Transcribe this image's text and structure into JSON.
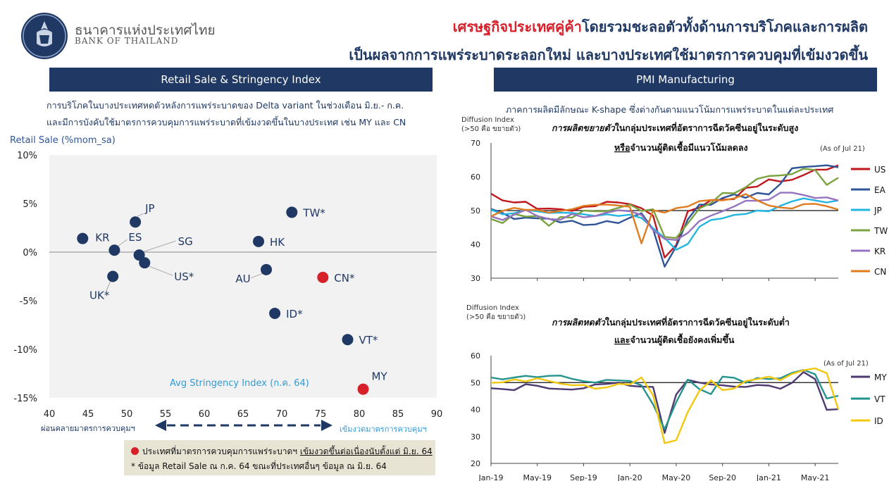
{
  "header": {
    "logo_thai": "ธนาคารแห่งประเทศไทย",
    "logo_en": "BANK OF THAILAND",
    "headline_highlight": "เศรษฐกิจประเทศคู่ค้า",
    "headline_rest": "โดยรวมชะลอตัวทั้งด้านการบริโภคและการผลิต",
    "headline_line2": "เป็นผลจากการแพร่ระบาดระลอกใหม่ และบางประเทศใช้มาตรการควบคุมที่เข้มงวดขึ้น"
  },
  "left_panel": {
    "banner": "Retail Sale & Stringency Index",
    "note_line1": "การบริโภคในบางประเทศหดตัวหลังการแพร่ระบาดของ Delta variant ในช่วงเดือน มิ.ย.- ก.ค.",
    "note_line2": "และมีการบังคับใช้มาตรการควบคุมการแพร่ระบาดที่เข้มงวดขึ้นในบางประเทศ เช่น MY และ CN",
    "arrow_left_label": "ผ่อนคลายมาตรการควบคุมฯ",
    "arrow_right_label": "เข้มงวดมาตรการควบคุมฯ",
    "legend_red": "ประเทศที่มาตรการควบคุมการแพร่ระบาดฯ",
    "legend_red_underlined": "เข้มงวดขึ้นต่อเนื่องนับตั้งแต่ มิ.ย. 64",
    "legend_star": "*  ข้อมูล Retail Sale ณ ก.ค. 64 ขณะที่ประเทศอื่นๆ ข้อมูล ณ มิ.ย. 64"
  },
  "right_panel": {
    "banner": "PMI Manufacturing",
    "note": "ภาคการผลิตมีลักษณะ K-shape ซึ่งต่างกันตามแนวโน้มการแพร่ระบาดในแต่ละประเทศ"
  },
  "colors": {
    "navy": "#1f3864",
    "red_dot": "#d6212a",
    "US": "#c0161c",
    "EA": "#2f5597",
    "JP": "#24b4e0",
    "TW": "#7aa340",
    "KR": "#9673c0",
    "CN": "#e07b20",
    "MY": "#4e3a73",
    "VT": "#26948e",
    "ID": "#f2c80f"
  },
  "chart_data": [
    {
      "type": "scatter",
      "title": "",
      "xlabel": "Avg Stringency Index (ก.ค. 64)",
      "ylabel": "Retail Sale (%mom_sa)",
      "xlim": [
        40,
        90
      ],
      "ylim": [
        -15,
        10
      ],
      "x_ticks": [
        "40",
        "45",
        "50",
        "55",
        "60",
        "65",
        "70",
        "75",
        "80",
        "85",
        "90"
      ],
      "y_ticks": [
        "10%",
        "5%",
        "0%",
        "-5%",
        "-10%",
        "-15%"
      ],
      "points": [
        {
          "label": "KR",
          "x": 44.3,
          "y": 1.4,
          "highlight": false
        },
        {
          "label": "JP",
          "x": 51.1,
          "y": 3.1,
          "highlight": false
        },
        {
          "label": "ES",
          "x": 48.4,
          "y": 0.2,
          "highlight": false
        },
        {
          "label": "SG",
          "x": 51.6,
          "y": -0.3,
          "highlight": false
        },
        {
          "label": "US*",
          "x": 52.3,
          "y": -1.1,
          "highlight": false
        },
        {
          "label": "UK*",
          "x": 48.2,
          "y": -2.5,
          "highlight": false
        },
        {
          "label": "TW*",
          "x": 71.3,
          "y": 4.1,
          "highlight": false
        },
        {
          "label": "HK",
          "x": 67.0,
          "y": 1.1,
          "highlight": false
        },
        {
          "label": "AU",
          "x": 68.0,
          "y": -1.8,
          "highlight": false
        },
        {
          "label": "CN*",
          "x": 75.3,
          "y": -2.6,
          "highlight": true
        },
        {
          "label": "ID*",
          "x": 69.1,
          "y": -6.3,
          "highlight": false
        },
        {
          "label": "VT*",
          "x": 78.5,
          "y": -9.0,
          "highlight": false
        },
        {
          "label": "MY",
          "x": 80.5,
          "y": -14.1,
          "highlight": true
        }
      ]
    },
    {
      "type": "line",
      "title": "การผลิตขยายตัวในกลุ่มประเทศที่อัตราการฉีดวัคซีนอยู่ในระดับสูง",
      "title_emph": "การผลิตขยายตัว",
      "title_rest": "ในกลุ่มประเทศที่อัตราการฉีดวัคซีนอยู่ในระดับสูง",
      "subtitle_underlined": "หรือ",
      "subtitle_rest": "จำนวนผู้ติดเชื้อมีแนวโน้มลดลง",
      "ylabel_line1": "Diffusion Index",
      "ylabel_line2": "(>50 คือ ขยายตัว)",
      "as_of": "(As of Jul 21)",
      "ylim": [
        30,
        70
      ],
      "y_ticks": [
        "70",
        "60",
        "50",
        "40",
        "30"
      ],
      "x_ticks": [
        "Jan-19",
        "May-19",
        "Sep-19",
        "Jan-20",
        "May-20",
        "Sep-20",
        "Jan-21",
        "May-21"
      ],
      "x": [
        "Jan-19",
        "Feb-19",
        "Mar-19",
        "Apr-19",
        "May-19",
        "Jun-19",
        "Jul-19",
        "Aug-19",
        "Sep-19",
        "Oct-19",
        "Nov-19",
        "Dec-19",
        "Jan-20",
        "Feb-20",
        "Mar-20",
        "Apr-20",
        "May-20",
        "Jun-20",
        "Jul-20",
        "Aug-20",
        "Sep-20",
        "Oct-20",
        "Nov-20",
        "Dec-20",
        "Jan-21",
        "Feb-21",
        "Mar-21",
        "Apr-21",
        "May-21",
        "Jun-21",
        "Jul-21"
      ],
      "reference_line": 50,
      "series": [
        {
          "name": "US",
          "values": [
            55.0,
            53.0,
            52.4,
            52.6,
            50.5,
            50.6,
            50.4,
            49.9,
            51.1,
            51.3,
            52.6,
            52.4,
            51.9,
            50.7,
            48.5,
            36.1,
            39.8,
            49.8,
            50.9,
            53.1,
            53.2,
            53.4,
            56.7,
            57.1,
            59.2,
            58.6,
            59.1,
            60.5,
            62.1,
            62.1,
            63.4
          ]
        },
        {
          "name": "EA",
          "values": [
            50.5,
            49.3,
            47.5,
            47.9,
            47.7,
            47.6,
            46.5,
            47.0,
            45.7,
            45.9,
            46.9,
            46.3,
            47.9,
            49.2,
            44.5,
            33.4,
            39.4,
            47.4,
            51.8,
            51.7,
            53.7,
            54.8,
            53.8,
            55.2,
            54.8,
            57.9,
            62.5,
            62.9,
            63.1,
            63.4,
            62.8
          ]
        },
        {
          "name": "JP",
          "values": [
            50.3,
            48.9,
            49.2,
            50.2,
            49.8,
            49.3,
            49.4,
            49.3,
            48.9,
            48.4,
            48.9,
            48.4,
            48.8,
            47.8,
            44.8,
            41.9,
            38.4,
            40.1,
            45.2,
            47.2,
            47.7,
            48.7,
            49.0,
            50.0,
            49.8,
            51.4,
            52.7,
            53.6,
            53.0,
            52.4,
            53.0
          ]
        },
        {
          "name": "TW",
          "values": [
            47.5,
            46.3,
            49.0,
            48.2,
            48.4,
            45.5,
            48.1,
            47.9,
            50.0,
            49.8,
            49.8,
            50.8,
            51.8,
            49.9,
            50.4,
            42.2,
            41.9,
            46.2,
            50.6,
            52.2,
            55.2,
            55.1,
            56.9,
            59.4,
            60.2,
            60.4,
            60.8,
            62.4,
            62.0,
            57.6,
            59.7
          ]
        },
        {
          "name": "KR",
          "values": [
            48.3,
            47.2,
            48.8,
            50.2,
            48.4,
            47.5,
            47.3,
            49.0,
            48.0,
            48.4,
            49.4,
            50.1,
            49.8,
            48.7,
            44.2,
            41.6,
            41.3,
            43.4,
            46.9,
            48.5,
            49.8,
            51.2,
            52.9,
            52.9,
            53.2,
            55.3,
            55.3,
            54.6,
            53.7,
            53.9,
            53.0
          ]
        },
        {
          "name": "CN",
          "values": [
            48.3,
            49.9,
            50.8,
            50.2,
            50.2,
            49.4,
            49.9,
            50.4,
            51.4,
            51.7,
            51.8,
            51.5,
            51.1,
            40.3,
            50.1,
            49.4,
            50.7,
            51.2,
            52.8,
            53.1,
            53.0,
            53.6,
            54.9,
            53.0,
            51.5,
            50.9,
            50.6,
            51.9,
            52.0,
            51.3,
            50.3
          ]
        }
      ]
    },
    {
      "type": "line",
      "title": "การผลิตหดตัวในกลุ่มประเทศที่อัตราการฉีดวัคซีนอยู่ในระดับต่ำ",
      "title_emph": "การผลิตหดตัว",
      "title_rest": "ในกลุ่มประเทศที่อัตราการฉีดวัคซีนอยู่ในระดับต่ำ",
      "subtitle_underlined": "และ",
      "subtitle_rest": "จำนวนผู้ติดเชื้อยังคงเพิ่มขึ้น",
      "ylabel_line1": "Diffusion Index",
      "ylabel_line2": "(>50 คือ ขยายตัว)",
      "as_of": "(As of Jul 21)",
      "ylim": [
        20,
        60
      ],
      "y_ticks": [
        "60",
        "50",
        "40",
        "30",
        "20"
      ],
      "x_ticks": [
        "Jan-19",
        "May-19",
        "Sep-19",
        "Jan-20",
        "May-20",
        "Sep-20",
        "Jan-21",
        "May-21"
      ],
      "x": [
        "Jan-19",
        "Feb-19",
        "Mar-19",
        "Apr-19",
        "May-19",
        "Jun-19",
        "Jul-19",
        "Aug-19",
        "Sep-19",
        "Oct-19",
        "Nov-19",
        "Dec-19",
        "Jan-20",
        "Feb-20",
        "Mar-20",
        "Apr-20",
        "May-20",
        "Jun-20",
        "Jul-20",
        "Aug-20",
        "Sep-20",
        "Oct-20",
        "Nov-20",
        "Dec-20",
        "Jan-21",
        "Feb-21",
        "Mar-21",
        "Apr-21",
        "May-21",
        "Jun-21",
        "Jul-21"
      ],
      "reference_line": 50,
      "series": [
        {
          "name": "MY",
          "values": [
            47.9,
            47.6,
            47.2,
            49.4,
            48.8,
            47.8,
            47.6,
            47.4,
            47.9,
            49.3,
            49.5,
            50.0,
            48.8,
            48.5,
            48.4,
            31.3,
            45.6,
            51.0,
            50.0,
            49.3,
            49.0,
            48.5,
            48.4,
            49.1,
            48.9,
            47.7,
            49.9,
            53.9,
            51.3,
            39.9,
            40.1
          ]
        },
        {
          "name": "VT",
          "values": [
            51.9,
            51.2,
            51.9,
            52.5,
            52.0,
            52.5,
            52.6,
            51.4,
            50.5,
            50.0,
            51.0,
            50.8,
            50.6,
            49.0,
            41.9,
            32.7,
            42.7,
            51.1,
            47.6,
            45.7,
            52.2,
            51.8,
            49.9,
            51.7,
            51.3,
            51.6,
            53.6,
            54.7,
            53.1,
            44.1,
            45.1
          ]
        },
        {
          "name": "ID",
          "values": [
            49.9,
            50.1,
            51.2,
            50.4,
            51.6,
            50.6,
            49.6,
            49.0,
            49.1,
            47.7,
            48.2,
            49.5,
            49.3,
            51.9,
            45.3,
            27.5,
            28.6,
            39.1,
            46.9,
            50.8,
            47.2,
            47.8,
            50.6,
            51.3,
            52.2,
            50.9,
            53.2,
            54.6,
            55.3,
            53.5,
            40.1
          ]
        }
      ]
    }
  ]
}
